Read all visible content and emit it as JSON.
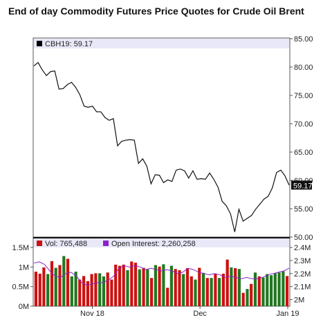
{
  "title": "End of day Commodity Futures Price Quotes for Crude Oil Brent",
  "chart_data": [
    {
      "type": "line",
      "legend": "CBH19: 59.17",
      "last_value_label": "59.17",
      "ylim": [
        50,
        85
      ],
      "yticks": [
        "85.00",
        "80.00",
        "75.00",
        "70.00",
        "65.00",
        "60.00",
        "55.00",
        "50.00"
      ],
      "grid": false,
      "legend_position": "top-left",
      "series": [
        {
          "values": [
            80.2,
            80.8,
            79.5,
            78.5,
            79.2,
            79.3,
            76.1,
            76.2,
            76.9,
            77.3,
            76.4,
            75.1,
            73.1,
            72.9,
            73.1,
            72.1,
            72.1,
            71.1,
            70.6,
            70.9,
            66.1,
            66.9,
            67.1,
            67.2,
            67.1,
            63.0,
            63.8,
            62.5,
            59.4,
            61.0,
            60.9,
            59.6,
            60.1,
            59.8,
            61.8,
            62.0,
            61.7,
            60.4,
            61.7,
            60.2,
            60.3,
            60.2,
            61.3,
            60.2,
            58.8,
            56.3,
            55.5,
            54.1,
            50.9,
            54.9,
            52.8,
            53.3,
            53.8,
            54.9,
            55.8,
            56.7,
            57.2,
            58.7,
            61.4,
            61.8,
            60.8,
            59.17
          ]
        }
      ]
    },
    {
      "type": "bar",
      "legend": [
        {
          "label": "Vol: 765,488",
          "color": "#cc1111"
        },
        {
          "label": "Open Interest: 2,260,258",
          "color": "#8822cc"
        }
      ],
      "ylim_left": [
        0,
        1500000
      ],
      "yticks_left": [
        "1.5M",
        "1M",
        "0.5M",
        "0M"
      ],
      "yticks_right": [
        "2.4M",
        "2.3M",
        "2.2M",
        "2.1M",
        "2M"
      ],
      "ylim_right": [
        1950000,
        2400000
      ],
      "volume": [
        0.88,
        0.83,
        0.99,
        0.82,
        1.15,
        0.98,
        1.05,
        1.28,
        1.21,
        0.76,
        0.88,
        0.68,
        0.77,
        0.64,
        0.82,
        0.84,
        0.84,
        0.76,
        0.86,
        0.68,
        1.06,
        1.03,
        1.06,
        0.92,
        1.14,
        1.11,
        0.94,
        0.98,
        0.94,
        0.72,
        1.05,
        1.01,
        1.07,
        0.47,
        1.03,
        0.95,
        0.92,
        0.82,
        0.97,
        0.76,
        0.68,
        0.98,
        0.85,
        0.72,
        0.72,
        0.82,
        0.72,
        0.83,
        1.19,
        0.99,
        0.97,
        0.95,
        0.34,
        0.44,
        0.57,
        0.86,
        0.76,
        0.73,
        0.82,
        0.79,
        0.84,
        0.86,
        0.89,
        0.77
      ],
      "volume_colors": [
        "r",
        "r",
        "r",
        "g",
        "r",
        "g",
        "r",
        "g",
        "r",
        "g",
        "g",
        "r",
        "r",
        "r",
        "r",
        "r",
        "g",
        "g",
        "r",
        "r",
        "r",
        "r",
        "r",
        "g",
        "r",
        "r",
        "g",
        "r",
        "g",
        "r",
        "g",
        "r",
        "g",
        "r",
        "g",
        "r",
        "r",
        "g",
        "r",
        "r",
        "g",
        "r",
        "g",
        "r",
        "g",
        "r",
        "g",
        "r",
        "r",
        "g",
        "r",
        "g",
        "r",
        "g",
        "r",
        "g",
        "r",
        "g",
        "g",
        "g",
        "g",
        "g",
        "g",
        "r"
      ],
      "open_interest_millions": [
        2.28,
        2.29,
        2.27,
        2.22,
        2.18,
        2.17,
        2.2,
        2.21,
        2.18,
        2.13,
        2.11,
        2.12,
        2.13,
        2.13,
        2.15,
        2.18,
        2.24,
        2.26,
        2.25,
        2.26,
        2.25,
        2.23,
        2.24,
        2.23,
        2.22,
        2.23,
        2.22,
        2.2,
        2.21,
        2.24,
        2.23,
        2.21,
        2.2,
        2.19,
        2.2,
        2.19,
        2.17,
        2.18,
        2.17,
        2.16,
        2.17,
        2.16,
        2.16,
        2.17,
        2.19,
        2.2,
        2.21,
        2.22,
        2.24
      ]
    }
  ],
  "x_axis": {
    "ticks": [
      "Nov 18",
      "Dec",
      "Jan 19"
    ]
  }
}
